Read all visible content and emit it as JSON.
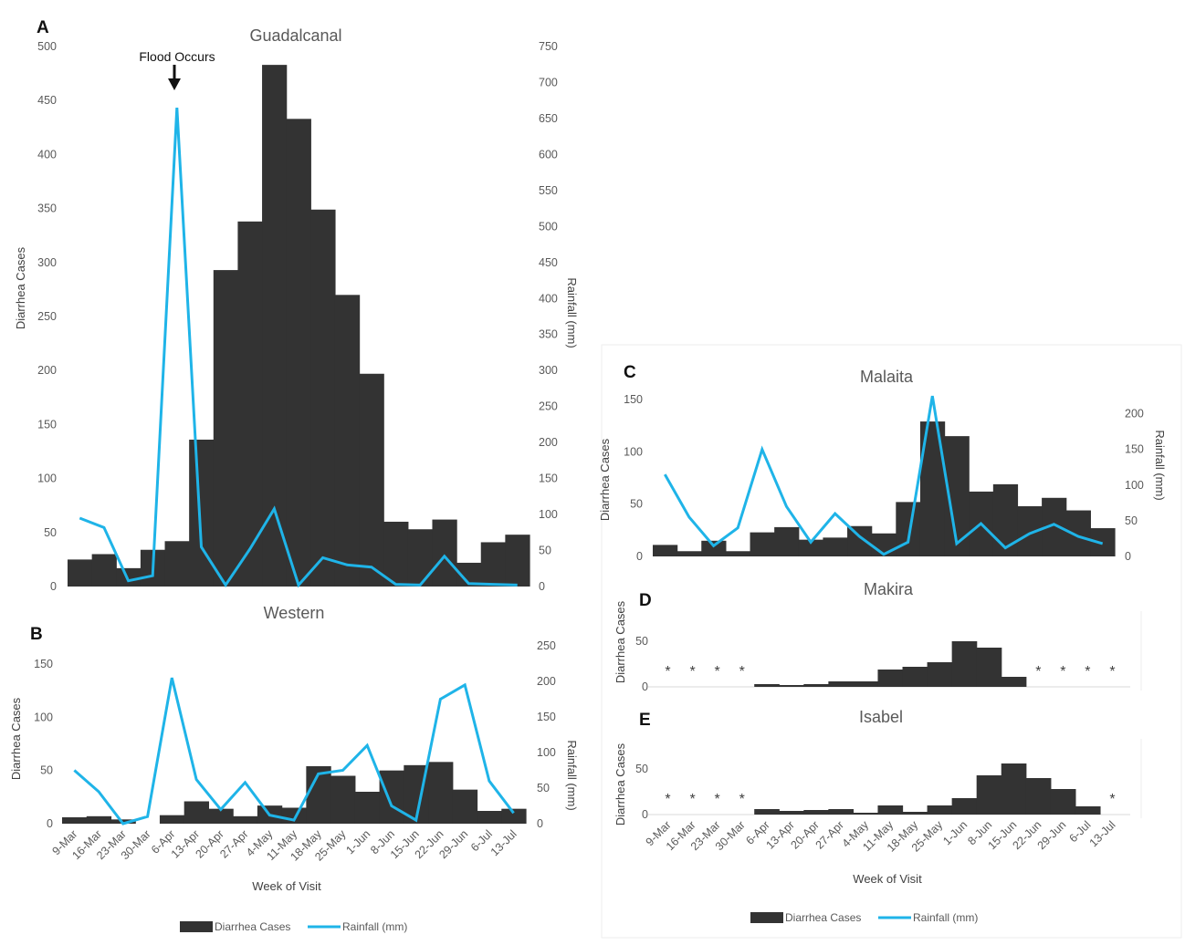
{
  "colors": {
    "bars": "#333333",
    "line": "#1FB4E8",
    "text": "#595959",
    "frame": "#e6e6e6"
  },
  "xlabel": "Week of Visit",
  "legend": {
    "bars_label": "Diarrhea Cases",
    "line_label": "Rainfall (mm)"
  },
  "annotation": {
    "text": "Flood Occurs"
  },
  "chart_data": [
    {
      "letter": "A",
      "title": "Guadalcanal",
      "type": "bar",
      "ylabel": "Diarrhea Cases",
      "y2label": "Rainfall (mm)",
      "ylim": [
        0,
        500
      ],
      "y2lim": [
        0,
        750
      ],
      "categories": [
        "9-Mar",
        "16-Mar",
        "23-Mar",
        "30-Mar",
        "6-Apr",
        "13-Apr",
        "20-Apr",
        "27-Apr",
        "4-May",
        "11-May",
        "18-May",
        "25-May",
        "1-Jun",
        "8-Jun",
        "15-Jun",
        "22-Jun",
        "29-Jun",
        "6-Jul",
        "13-Jul"
      ],
      "series": [
        {
          "name": "Diarrhea Cases",
          "type": "bar",
          "axis": "left",
          "values": [
            25,
            30,
            17,
            34,
            42,
            136,
            293,
            338,
            483,
            433,
            349,
            270,
            197,
            60,
            53,
            62,
            22,
            41,
            48
          ]
        },
        {
          "name": "Rainfall (mm)",
          "type": "line",
          "axis": "right",
          "values": [
            95,
            82,
            8,
            15,
            665,
            55,
            2,
            52,
            108,
            2,
            40,
            30,
            27,
            3,
            2,
            42,
            4,
            3,
            2
          ]
        }
      ]
    },
    {
      "letter": "B",
      "title": "Western",
      "type": "bar",
      "ylabel": "Diarrhea Cases",
      "y2label": "Rainfall (mm)",
      "ylim": [
        0,
        170
      ],
      "y2lim": [
        0,
        250
      ],
      "categories": [
        "9-Mar",
        "16-Mar",
        "23-Mar",
        "30-Mar",
        "6-Apr",
        "13-Apr",
        "20-Apr",
        "27-Apr",
        "4-May",
        "11-May",
        "18-May",
        "25-May",
        "1-Jun",
        "8-Jun",
        "15-Jun",
        "22-Jun",
        "29-Jun",
        "6-Jul",
        "13-Jul"
      ],
      "series": [
        {
          "name": "Diarrhea Cases",
          "type": "bar",
          "axis": "left",
          "values": [
            6,
            7,
            4,
            0,
            8,
            21,
            14,
            7,
            17,
            15,
            54,
            45,
            30,
            50,
            55,
            58,
            32,
            12,
            14
          ]
        },
        {
          "name": "Rainfall (mm)",
          "type": "line",
          "axis": "right",
          "values": [
            75,
            45,
            0,
            10,
            205,
            62,
            20,
            58,
            12,
            5,
            70,
            75,
            110,
            25,
            5,
            175,
            195,
            60,
            15
          ]
        }
      ]
    },
    {
      "letter": "C",
      "title": "Malaita",
      "type": "bar",
      "ylabel": "Diarrhea Cases",
      "y2label": "Rainfall (mm)",
      "ylim": [
        0,
        150
      ],
      "y2lim": [
        0,
        220
      ],
      "categories": [
        "9-Mar",
        "16-Mar",
        "23-Mar",
        "30-Mar",
        "6-Apr",
        "13-Apr",
        "20-Apr",
        "27-Apr",
        "4-May",
        "11-May",
        "18-May",
        "25-May",
        "1-Jun",
        "8-Jun",
        "15-Jun",
        "22-Jun",
        "29-Jun",
        "6-Jul",
        "13-Jul"
      ],
      "series": [
        {
          "name": "Diarrhea Cases",
          "type": "bar",
          "axis": "left",
          "values": [
            11,
            5,
            15,
            5,
            23,
            28,
            16,
            18,
            29,
            22,
            52,
            129,
            115,
            62,
            69,
            48,
            56,
            44,
            27
          ]
        },
        {
          "name": "Rainfall (mm)",
          "type": "line",
          "axis": "right",
          "values": [
            115,
            55,
            15,
            40,
            150,
            70,
            20,
            60,
            28,
            3,
            20,
            225,
            18,
            46,
            12,
            32,
            45,
            28,
            18
          ]
        }
      ]
    },
    {
      "letter": "D",
      "title": "Makira",
      "type": "bar",
      "ylim": [
        0,
        75
      ],
      "categories": [
        "9-Mar",
        "16-Mar",
        "23-Mar",
        "30-Mar",
        "6-Apr",
        "13-Apr",
        "20-Apr",
        "27-Apr",
        "4-May",
        "11-May",
        "18-May",
        "25-May",
        "1-Jun",
        "8-Jun",
        "15-Jun",
        "22-Jun",
        "29-Jun",
        "6-Jul",
        "13-Jul"
      ],
      "series": [
        {
          "name": "Diarrhea Cases",
          "type": "bar",
          "axis": "left",
          "values": [
            null,
            null,
            null,
            null,
            3,
            2,
            3,
            6,
            6,
            19,
            22,
            27,
            50,
            43,
            11,
            null,
            null,
            null,
            null
          ]
        }
      ],
      "missing_marker": "*"
    },
    {
      "letter": "E",
      "title": "Isabel",
      "type": "bar",
      "ylim": [
        0,
        75
      ],
      "categories": [
        "9-Mar",
        "16-Mar",
        "23-Mar",
        "30-Mar",
        "6-Apr",
        "13-Apr",
        "20-Apr",
        "27-Apr",
        "4-May",
        "11-May",
        "18-May",
        "25-May",
        "1-Jun",
        "8-Jun",
        "15-Jun",
        "22-Jun",
        "29-Jun",
        "6-Jul",
        "13-Jul"
      ],
      "series": [
        {
          "name": "Diarrhea Cases",
          "type": "bar",
          "axis": "left",
          "values": [
            null,
            null,
            null,
            null,
            6,
            4,
            5,
            6,
            2,
            10,
            3,
            10,
            18,
            43,
            56,
            40,
            28,
            9,
            null
          ]
        }
      ],
      "missing_marker": "*"
    }
  ]
}
